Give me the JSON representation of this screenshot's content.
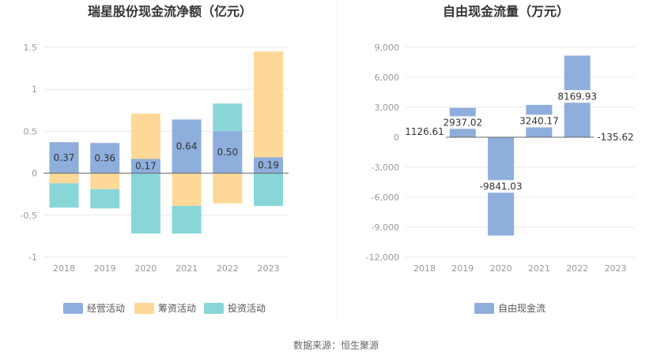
{
  "source_text": "数据来源：恒生聚源",
  "colors": {
    "operating": "#8eaedc",
    "financing": "#fed898",
    "investing": "#88d6d8",
    "fcf": "#8eaedc",
    "grid": "#e8e8ee",
    "axis": "#999999",
    "label_bg": "#8eaedc"
  },
  "chart_data": [
    {
      "type": "bar",
      "stacked": true,
      "title": "瑞星股份现金流净额（亿元）",
      "categories": [
        "2018",
        "2019",
        "2020",
        "2021",
        "2022",
        "2023"
      ],
      "ylim": [
        -1,
        1.5
      ],
      "yticks": [
        "-1",
        "-0.5",
        "0",
        "0.5",
        "1",
        "1.5"
      ],
      "ytick_values": [
        -1,
        -0.5,
        0,
        0.5,
        1,
        1.5
      ],
      "grid": true,
      "legend_position": "bottom",
      "series": [
        {
          "name": "经营活动",
          "values": [
            0.37,
            0.36,
            0.17,
            0.64,
            0.5,
            0.19
          ]
        },
        {
          "name": "筹资活动",
          "values": [
            -0.12,
            -0.19,
            0.54,
            -0.39,
            -0.36,
            1.26
          ]
        },
        {
          "name": "投资活动",
          "values": [
            -0.29,
            -0.23,
            -0.72,
            -0.33,
            0.33,
            -0.39
          ]
        }
      ],
      "data_labels": [
        "0.37",
        "0.36",
        "0.17",
        "0.64",
        "0.50",
        "0.19"
      ]
    },
    {
      "type": "bar",
      "title": "自由现金流量（万元）",
      "categories": [
        "2018",
        "2019",
        "2020",
        "2021",
        "2022",
        "2023"
      ],
      "ylim": [
        -12000,
        9000
      ],
      "yticks": [
        "-12,000",
        "-9,000",
        "-6,000",
        "-3,000",
        "0",
        "3,000",
        "6,000",
        "9,000"
      ],
      "ytick_values": [
        -12000,
        -9000,
        -6000,
        -3000,
        0,
        3000,
        6000,
        9000
      ],
      "grid": true,
      "legend_position": "bottom",
      "series": [
        {
          "name": "自由现金流",
          "values": [
            1126.61,
            2937.02,
            -9841.03,
            3240.17,
            8169.93,
            -135.62
          ]
        }
      ],
      "data_labels": [
        "1126.61",
        "2937.02",
        "-9841.03",
        "3240.17",
        "8169.93",
        "-135.62"
      ]
    }
  ]
}
